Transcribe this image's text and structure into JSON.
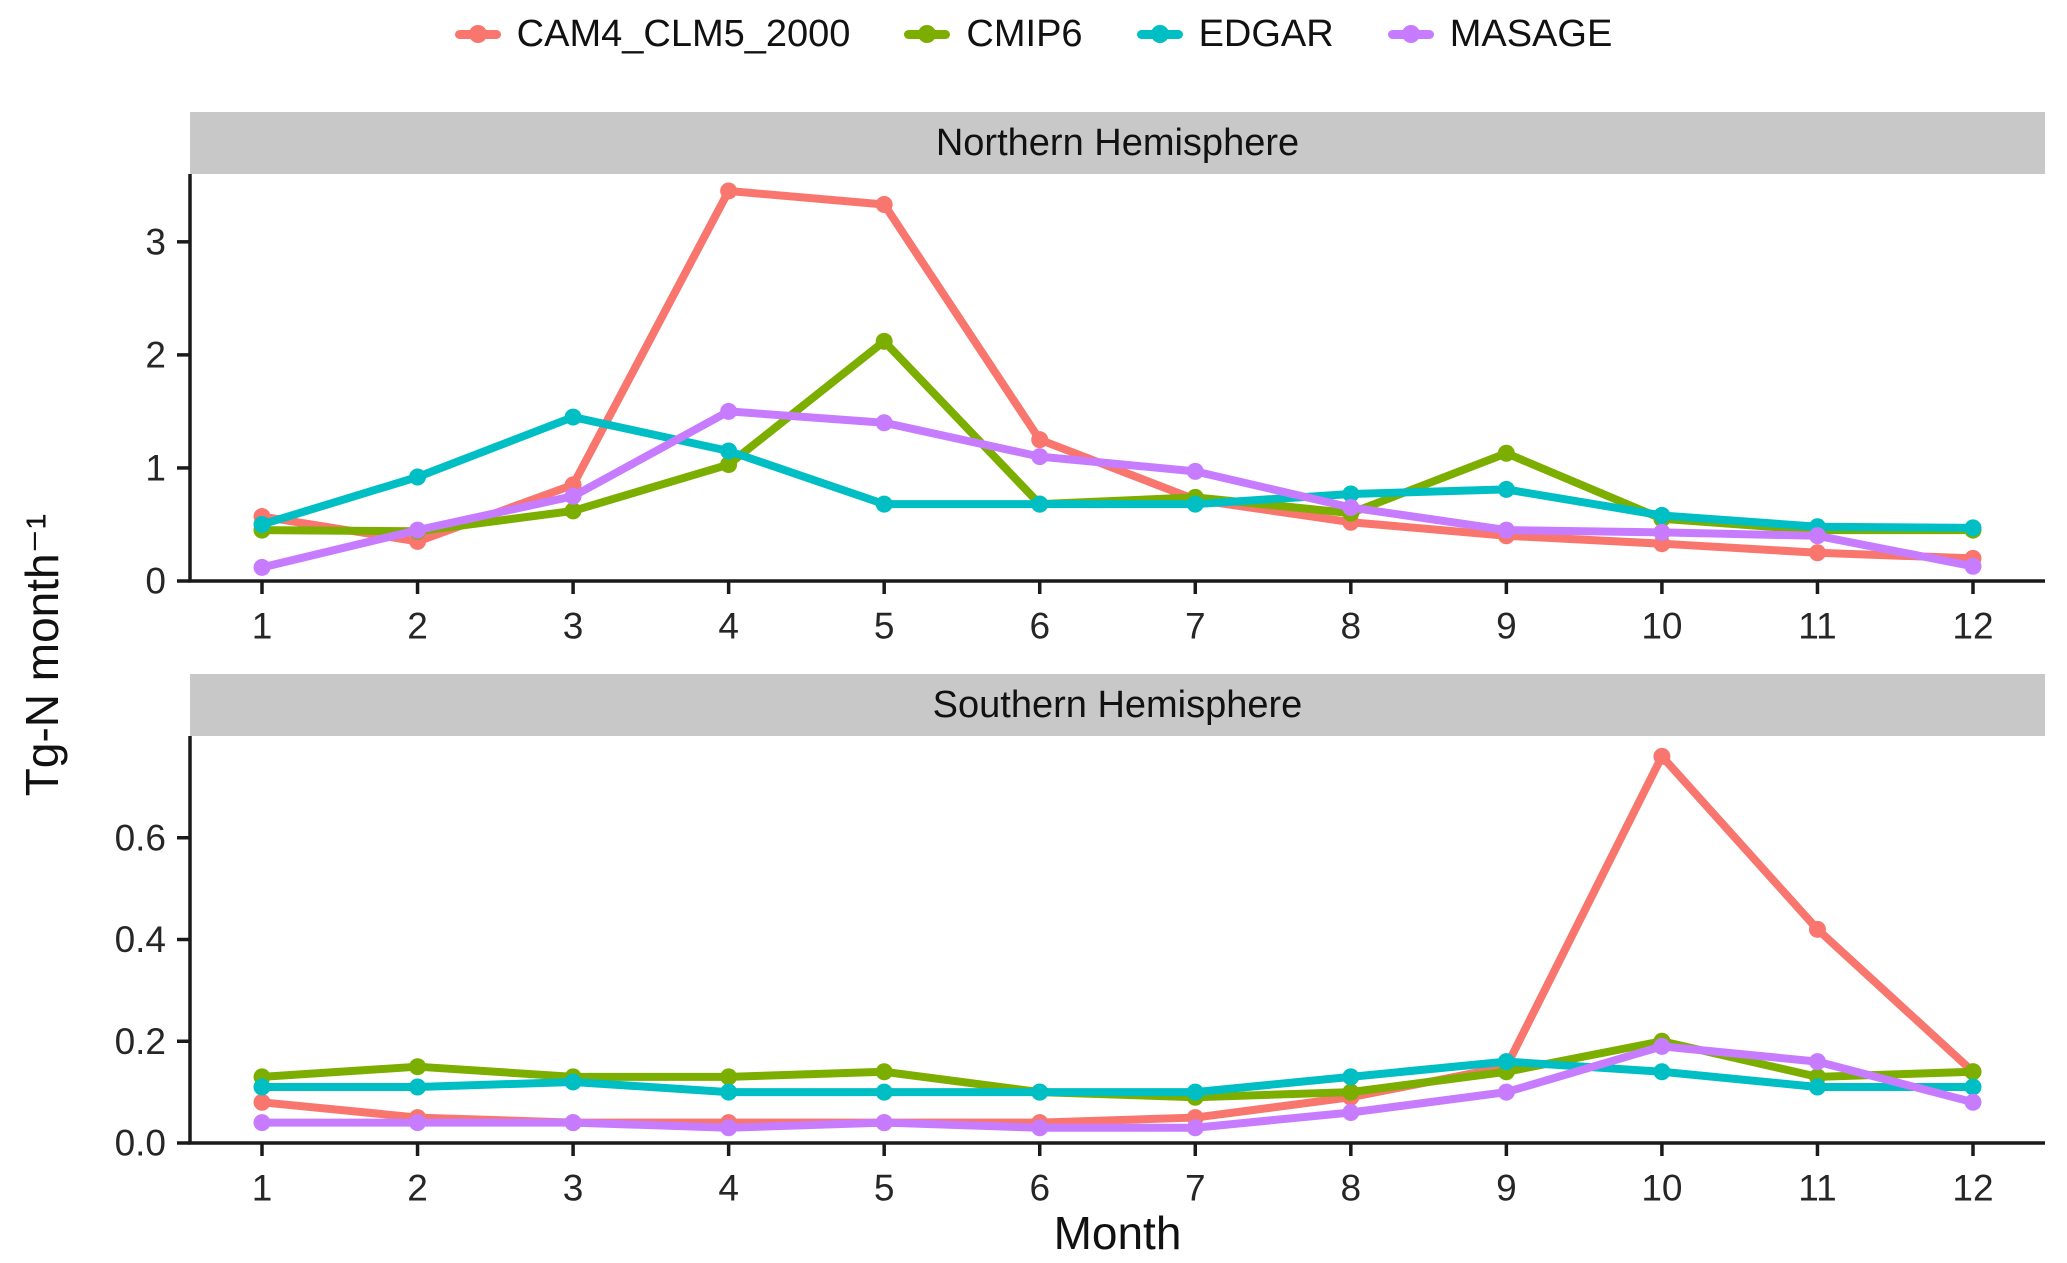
{
  "figure": {
    "background": "#FFFFFF",
    "strip_background": "#C8C8C8",
    "axis_color": "#1A1A1A",
    "x_axis_label": "Month",
    "y_axis_label": "Tg-N month⁻¹"
  },
  "legend": {
    "position": "top",
    "entries": [
      {
        "label": "CAM4_CLM5_2000",
        "color": "#F8766D"
      },
      {
        "label": "CMIP6",
        "color": "#7CAE00"
      },
      {
        "label": "EDGAR",
        "color": "#00BFC4"
      },
      {
        "label": "MASAGE",
        "color": "#C77CFF"
      }
    ]
  },
  "chart_data": [
    {
      "type": "line",
      "title": "Northern Hemisphere",
      "xlabel": "Month",
      "ylabel": "Tg-N month⁻¹",
      "x": [
        1,
        2,
        3,
        4,
        5,
        6,
        7,
        8,
        9,
        10,
        11,
        12
      ],
      "ylim": [
        0,
        3.6
      ],
      "yticks": [
        0,
        1,
        2,
        3
      ],
      "ytick_labels": [
        "0",
        "1",
        "2",
        "3"
      ],
      "grid": false,
      "series": [
        {
          "name": "CAM4_CLM5_2000",
          "color": "#F8766D",
          "values": [
            0.57,
            0.35,
            0.85,
            3.45,
            3.33,
            1.25,
            0.72,
            0.52,
            0.4,
            0.33,
            0.25,
            0.2
          ]
        },
        {
          "name": "CMIP6",
          "color": "#7CAE00",
          "values": [
            0.45,
            0.44,
            0.62,
            1.03,
            2.12,
            0.68,
            0.74,
            0.6,
            1.13,
            0.55,
            0.45,
            0.45
          ]
        },
        {
          "name": "EDGAR",
          "color": "#00BFC4",
          "values": [
            0.5,
            0.92,
            1.45,
            1.15,
            0.68,
            0.68,
            0.68,
            0.77,
            0.81,
            0.58,
            0.48,
            0.47
          ]
        },
        {
          "name": "MASAGE",
          "color": "#C77CFF",
          "values": [
            0.12,
            0.45,
            0.75,
            1.5,
            1.4,
            1.1,
            0.97,
            0.65,
            0.45,
            0.43,
            0.4,
            0.13
          ]
        }
      ]
    },
    {
      "type": "line",
      "title": "Southern Hemisphere",
      "xlabel": "Month",
      "ylabel": "Tg-N month⁻¹",
      "x": [
        1,
        2,
        3,
        4,
        5,
        6,
        7,
        8,
        9,
        10,
        11,
        12
      ],
      "ylim": [
        0,
        0.8
      ],
      "yticks": [
        0,
        0.2,
        0.4,
        0.6
      ],
      "ytick_labels": [
        "0.0",
        "0.2",
        "0.4",
        "0.6"
      ],
      "grid": false,
      "series": [
        {
          "name": "CAM4_CLM5_2000",
          "color": "#F8766D",
          "values": [
            0.08,
            0.05,
            0.04,
            0.04,
            0.04,
            0.04,
            0.05,
            0.09,
            0.15,
            0.76,
            0.42,
            0.14
          ]
        },
        {
          "name": "CMIP6",
          "color": "#7CAE00",
          "values": [
            0.13,
            0.15,
            0.13,
            0.13,
            0.14,
            0.1,
            0.09,
            0.1,
            0.14,
            0.2,
            0.13,
            0.14
          ]
        },
        {
          "name": "EDGAR",
          "color": "#00BFC4",
          "values": [
            0.11,
            0.11,
            0.12,
            0.1,
            0.1,
            0.1,
            0.1,
            0.13,
            0.16,
            0.14,
            0.11,
            0.11
          ]
        },
        {
          "name": "MASAGE",
          "color": "#C77CFF",
          "values": [
            0.04,
            0.04,
            0.04,
            0.03,
            0.04,
            0.03,
            0.03,
            0.06,
            0.1,
            0.19,
            0.16,
            0.08
          ]
        }
      ]
    }
  ]
}
